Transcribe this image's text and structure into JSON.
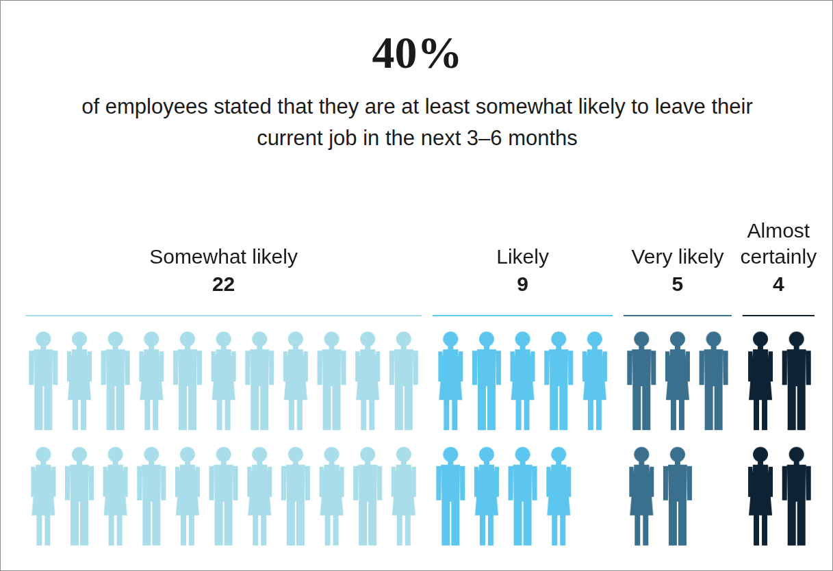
{
  "chart_data": {
    "type": "pictogram",
    "title": "40%",
    "subtitle": "of employees stated that they are at least somewhat likely to leave their current job in the next 3–6 months",
    "categories": [
      "Somewhat likely",
      "Likely",
      "Very likely",
      "Almost certainly"
    ],
    "values": [
      22,
      9,
      5,
      4
    ],
    "colors": [
      "#a8dde9",
      "#5cc6ee",
      "#3a708d",
      "#0d2233"
    ],
    "data_labels": true,
    "tick_labels": false
  }
}
